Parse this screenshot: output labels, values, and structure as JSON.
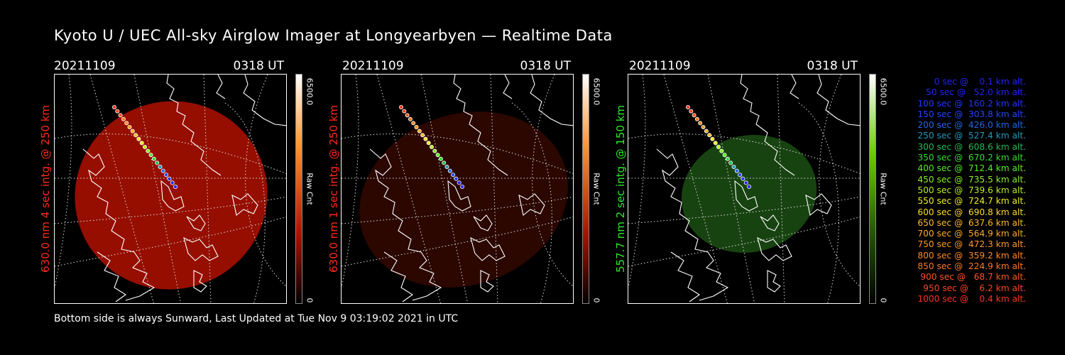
{
  "title": "Kyoto U / UEC All-sky Airglow Imager at Longyearbyen — Realtime Data",
  "panels": [
    {
      "date": "20211109",
      "time": "0318 UT",
      "ylabel": "630.0 nm 4 sec intg. @ 250 km",
      "label_color": "#ff2a1a",
      "cbar_max": "6500.0",
      "cbar_min": "0",
      "cbar_unit": "Raw Cnt",
      "cbar_color": "#ff3300"
    },
    {
      "date": "20211109",
      "time": "0318 UT",
      "ylabel": "630.0 nm 1 sec intg. @ 250 km",
      "label_color": "#ff2a1a",
      "cbar_max": "6500.0",
      "cbar_min": "0",
      "cbar_unit": "Raw Cnt",
      "cbar_color": "#ff3300"
    },
    {
      "date": "20211109",
      "time": "0318 UT",
      "ylabel": "557.7 nm 2 sec intg. @ 150 km",
      "label_color": "#2ee82e",
      "cbar_max": "6500.0",
      "cbar_min": "0",
      "cbar_unit": "Raw Cnt",
      "cbar_color": "#44cc00"
    }
  ],
  "legend": [
    {
      "text": "   0 sec @    0.1 km alt.",
      "color": "#2222ff"
    },
    {
      "text": "  50 sec @   52.0 km alt.",
      "color": "#2222ff"
    },
    {
      "text": " 100 sec @  160.2 km alt.",
      "color": "#2233ff"
    },
    {
      "text": " 150 sec @  303.8 km alt.",
      "color": "#2244ff"
    },
    {
      "text": " 200 sec @  426.0 km alt.",
      "color": "#2266ee"
    },
    {
      "text": " 250 sec @  527.4 km alt.",
      "color": "#2299bb"
    },
    {
      "text": " 300 sec @  608.6 km alt.",
      "color": "#22bb55"
    },
    {
      "text": " 350 sec @  670.2 km alt.",
      "color": "#33dd33"
    },
    {
      "text": " 400 sec @  712.4 km alt.",
      "color": "#55ee22"
    },
    {
      "text": " 450 sec @  735.5 km alt.",
      "color": "#88ee22"
    },
    {
      "text": " 500 sec @  739.6 km alt.",
      "color": "#bbee22"
    },
    {
      "text": " 550 sec @  724.7 km alt.",
      "color": "#eeee22"
    },
    {
      "text": " 600 sec @  690.8 km alt.",
      "color": "#ffdd22"
    },
    {
      "text": " 650 sec @  637.6 km alt.",
      "color": "#ffbb22"
    },
    {
      "text": " 700 sec @  564.9 km alt.",
      "color": "#ffaa22"
    },
    {
      "text": " 750 sec @  472.3 km alt.",
      "color": "#ff9922"
    },
    {
      "text": " 800 sec @  359.2 km alt.",
      "color": "#ff8822"
    },
    {
      "text": " 850 sec @  224.9 km alt.",
      "color": "#ff7722"
    },
    {
      "text": " 900 sec @   68.7 km alt.",
      "color": "#ff5522"
    },
    {
      "text": " 950 sec @    6.2 km alt.",
      "color": "#ff4422"
    },
    {
      "text": "1000 sec @    0.4 km alt.",
      "color": "#ff3322"
    }
  ],
  "footer": "Bottom side is always Sunward, Last Updated at Tue Nov  9 03:19:02 2021 in UTC",
  "styles": {
    "glow_red": "#b01000",
    "glow_red_dim": "#300800",
    "glow_green": "#1a4a12",
    "coast": "#ffffff",
    "grid": "#dddddd"
  }
}
